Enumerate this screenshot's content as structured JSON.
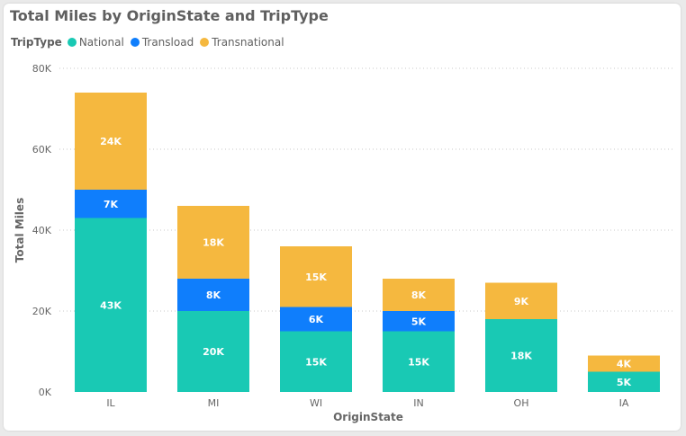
{
  "chart_data": {
    "type": "bar",
    "stacked": true,
    "title": "Total Miles by OriginState and TripType",
    "xlabel": "OriginState",
    "ylabel": "Total Miles",
    "legend_title": "TripType",
    "legend_position": "top-left",
    "grid": true,
    "ylim": [
      0,
      80000
    ],
    "y_ticks": [
      "0K",
      "20K",
      "40K",
      "60K",
      "80K"
    ],
    "categories": [
      "IL",
      "MI",
      "WI",
      "IN",
      "OH",
      "IA"
    ],
    "series": [
      {
        "name": "National",
        "color": "#19c9b4",
        "values": [
          43000,
          20000,
          15000,
          15000,
          18000,
          5000
        ],
        "labels": [
          "43K",
          "20K",
          "15K",
          "15K",
          "18K",
          "5K"
        ]
      },
      {
        "name": "Transload",
        "color": "#0f7efc",
        "values": [
          7000,
          8000,
          6000,
          5000,
          0,
          0
        ],
        "labels": [
          "7K",
          "8K",
          "6K",
          "5K",
          "",
          ""
        ]
      },
      {
        "name": "Transnational",
        "color": "#f5b83f",
        "values": [
          24000,
          18000,
          15000,
          8000,
          9000,
          4000
        ],
        "labels": [
          "24K",
          "18K",
          "15K",
          "8K",
          "9K",
          "4K"
        ]
      }
    ]
  }
}
